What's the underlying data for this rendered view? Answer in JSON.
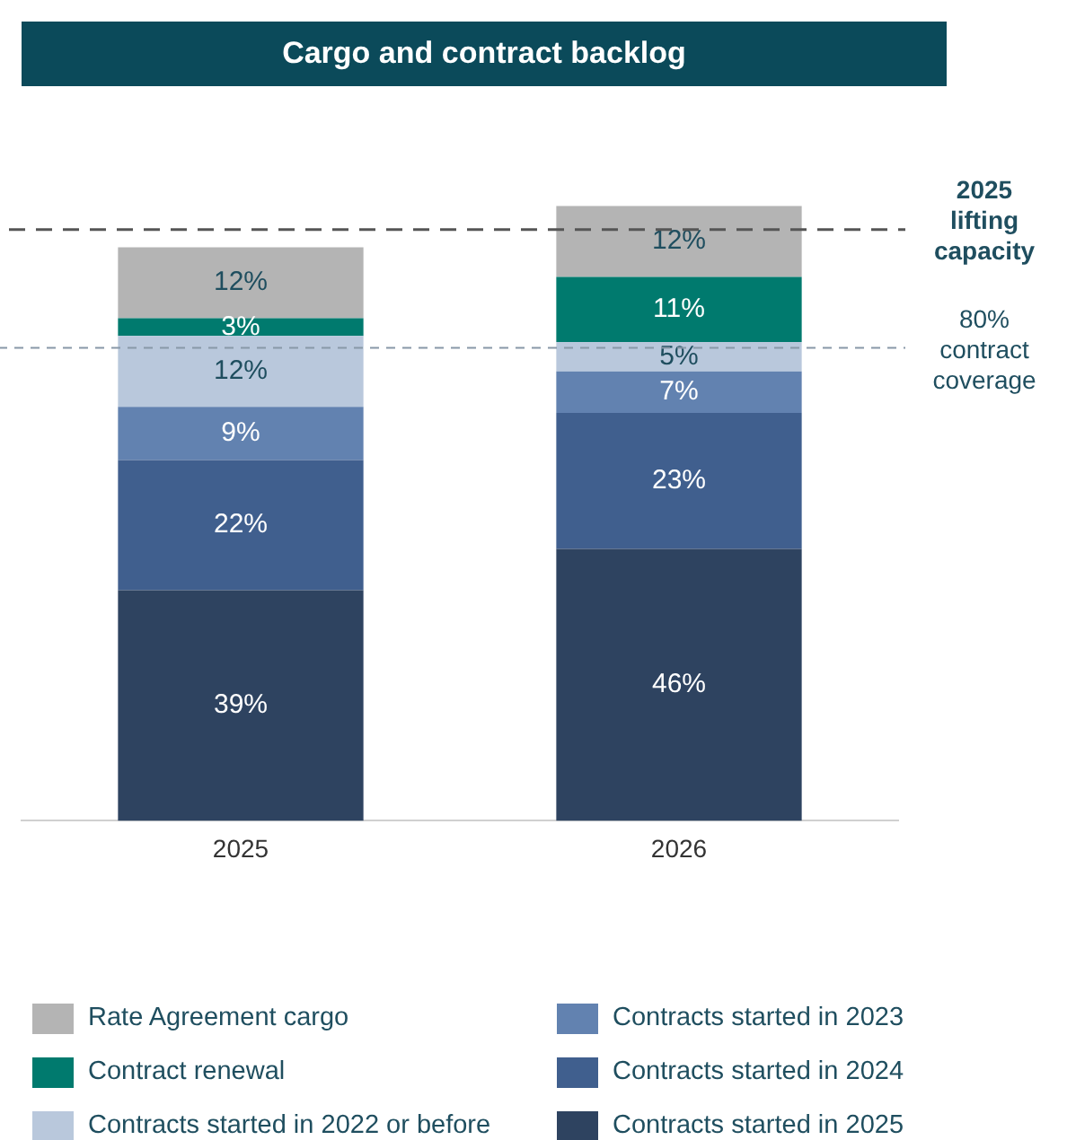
{
  "chart_data": {
    "type": "bar",
    "title": "Cargo and contract backlog",
    "categories": [
      "2025",
      "2026"
    ],
    "stacked": true,
    "grid": false,
    "legend": "bottom",
    "tick_labels": "x",
    "series": [
      {
        "name": "Contracts started in 2025",
        "color": "#2e4360",
        "values": [
          39,
          46
        ],
        "value_labels": [
          "39%",
          "46%"
        ]
      },
      {
        "name": "Contracts started in 2024",
        "color": "#405f8e",
        "values": [
          22,
          23
        ],
        "value_labels": [
          "22%",
          "23%"
        ]
      },
      {
        "name": "Contracts started in 2023",
        "color": "#6282b0",
        "values": [
          9,
          7
        ],
        "value_labels": [
          "9%",
          "7%"
        ]
      },
      {
        "name": "Contracts started in 2022 or before",
        "color": "#b9c8dc",
        "values": [
          12,
          5
        ],
        "value_labels": [
          "12%",
          "5%"
        ]
      },
      {
        "name": "Contract renewal",
        "color": "#007a6e",
        "values": [
          3,
          11
        ],
        "value_labels": [
          "3%",
          "11%"
        ]
      },
      {
        "name": "Rate Agreement cargo",
        "color": "#b4b4b4",
        "values": [
          12,
          12
        ],
        "value_labels": [
          "12%",
          "12%"
        ]
      }
    ],
    "ref_lines": [
      {
        "axis": "y",
        "value": 100,
        "label": "2025 lifting capacity",
        "color": "#555555",
        "line_style": "dashed"
      },
      {
        "axis": "y",
        "value": 80,
        "label": "80% contract coverage",
        "color": "#8898a8",
        "line_style": "dashed"
      }
    ]
  }
}
